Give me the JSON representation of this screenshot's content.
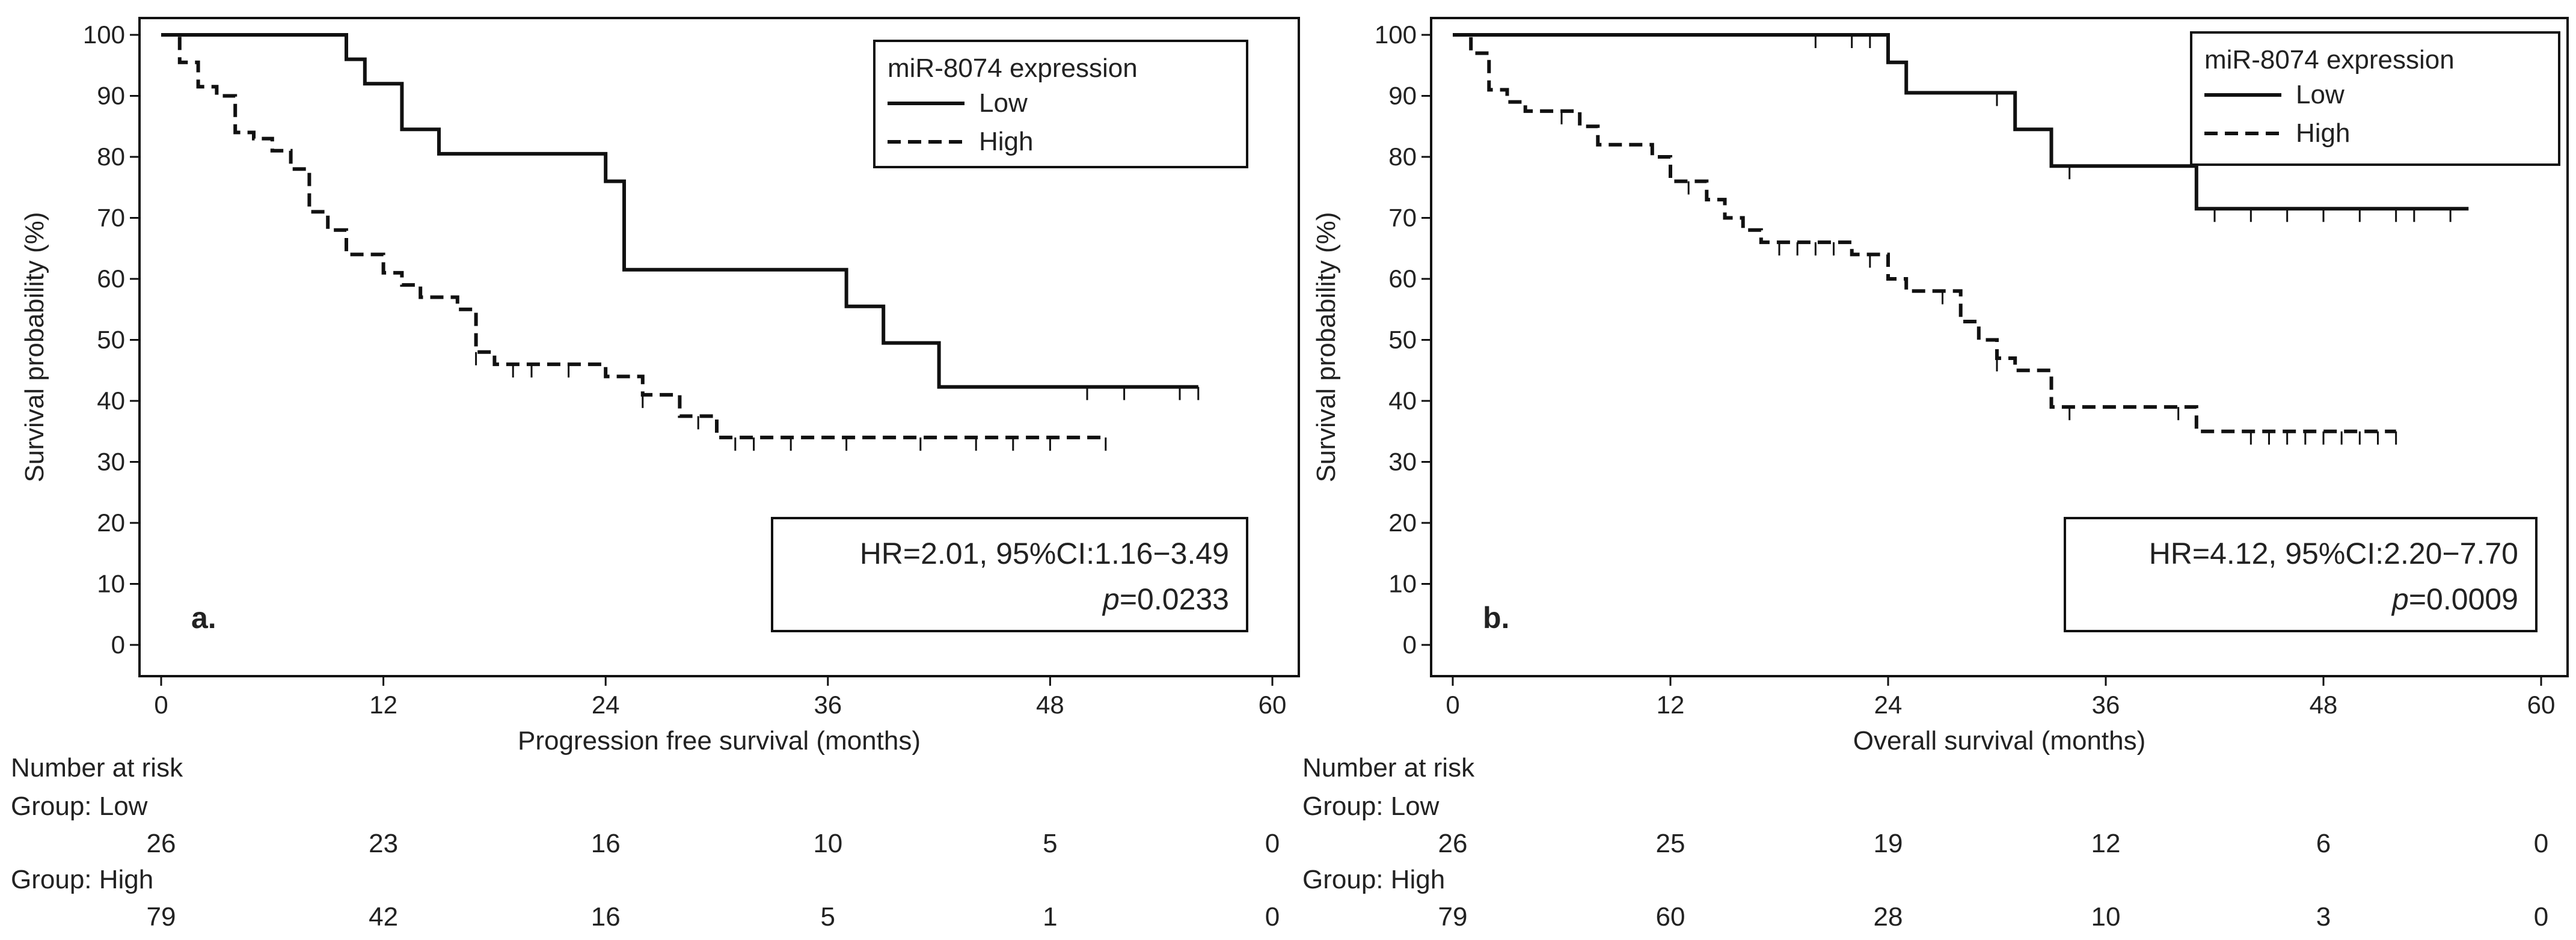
{
  "colors": {
    "line": "#111111",
    "text": "#222222",
    "background": "#ffffff"
  },
  "chart_data": [
    {
      "type": "line",
      "subtype": "kaplan-meier",
      "panel_label": "a.",
      "xlabel": "Progression free survival (months)",
      "ylabel": "Survival probability (%)",
      "xlim": [
        0,
        60
      ],
      "ylim": [
        0,
        100
      ],
      "xticks": [
        "0",
        "12",
        "24",
        "36",
        "48",
        "60"
      ],
      "yticks": [
        "0",
        "10",
        "20",
        "30",
        "40",
        "50",
        "60",
        "70",
        "80",
        "90",
        "100"
      ],
      "legend": {
        "title": "miR-8074 expression",
        "position": "top-right",
        "entries": [
          "Low",
          "High"
        ]
      },
      "stats": {
        "hr_text": "HR=2.01, 95%CI:1.16−3.49",
        "p_label": "p",
        "p_value": "=0.0233"
      },
      "series": [
        {
          "name": "Low",
          "style": "solid",
          "steps": [
            [
              0,
              100
            ],
            [
              10,
              100
            ],
            [
              10,
              96
            ],
            [
              11,
              96
            ],
            [
              11,
              92
            ],
            [
              13,
              92
            ],
            [
              13,
              84.5
            ],
            [
              15,
              84.5
            ],
            [
              15,
              80.5
            ],
            [
              24,
              80.5
            ],
            [
              24,
              76
            ],
            [
              25,
              76
            ],
            [
              25,
              61.5
            ],
            [
              37,
              61.5
            ],
            [
              37,
              55.5
            ],
            [
              39,
              55.5
            ],
            [
              39,
              49.5
            ],
            [
              42,
              49.5
            ],
            [
              42,
              42.3
            ],
            [
              56,
              42.3
            ]
          ],
          "censor": [
            50,
            52,
            55,
            56
          ]
        },
        {
          "name": "High",
          "style": "dashed",
          "steps": [
            [
              0,
              100
            ],
            [
              1,
              100
            ],
            [
              1,
              95.5
            ],
            [
              2,
              95.5
            ],
            [
              2,
              91.5
            ],
            [
              3,
              91.5
            ],
            [
              3,
              90
            ],
            [
              4,
              90
            ],
            [
              4,
              84
            ],
            [
              5,
              84
            ],
            [
              5,
              83
            ],
            [
              6,
              83
            ],
            [
              6,
              81
            ],
            [
              7,
              81
            ],
            [
              7,
              78
            ],
            [
              8,
              78
            ],
            [
              8,
              71
            ],
            [
              9,
              71
            ],
            [
              9,
              68
            ],
            [
              10,
              68
            ],
            [
              10,
              64
            ],
            [
              12,
              64
            ],
            [
              12,
              61
            ],
            [
              13,
              61
            ],
            [
              13,
              59
            ],
            [
              14,
              59
            ],
            [
              14,
              57
            ],
            [
              16,
              57
            ],
            [
              16,
              55
            ],
            [
              17,
              55
            ],
            [
              17,
              48
            ],
            [
              18,
              48
            ],
            [
              18,
              46
            ],
            [
              24,
              46
            ],
            [
              24,
              44
            ],
            [
              26,
              44
            ],
            [
              26,
              41
            ],
            [
              28,
              41
            ],
            [
              28,
              37.5
            ],
            [
              30,
              37.5
            ],
            [
              30,
              34
            ],
            [
              51,
              34
            ]
          ],
          "censor": [
            17,
            19,
            20,
            22,
            26,
            29,
            31,
            32,
            34,
            37,
            41,
            44,
            46,
            48,
            51
          ]
        }
      ],
      "risk_table": {
        "title": "Number at risk",
        "groups": [
          {
            "label": "Group: Low",
            "values": [
              26,
              23,
              16,
              10,
              5,
              0
            ]
          },
          {
            "label": "Group: High",
            "values": [
              79,
              42,
              16,
              5,
              1,
              0
            ]
          }
        ]
      }
    },
    {
      "type": "line",
      "subtype": "kaplan-meier",
      "panel_label": "b.",
      "xlabel": "Overall survival (months)",
      "ylabel": "Survival probability (%)",
      "xlim": [
        0,
        60
      ],
      "ylim": [
        0,
        100
      ],
      "xticks": [
        "0",
        "12",
        "24",
        "36",
        "48",
        "60"
      ],
      "yticks": [
        "0",
        "10",
        "20",
        "30",
        "40",
        "50",
        "60",
        "70",
        "80",
        "90",
        "100"
      ],
      "legend": {
        "title": "miR-8074 expression",
        "position": "top-right",
        "entries": [
          "Low",
          "High"
        ]
      },
      "stats": {
        "hr_text": "HR=4.12, 95%CI:2.20−7.70",
        "p_label": "p",
        "p_value": "=0.0009"
      },
      "series": [
        {
          "name": "Low",
          "style": "solid",
          "steps": [
            [
              0,
              100
            ],
            [
              24,
              100
            ],
            [
              24,
              95.5
            ],
            [
              25,
              95.5
            ],
            [
              25,
              90.5
            ],
            [
              31,
              90.5
            ],
            [
              31,
              84.5
            ],
            [
              33,
              84.5
            ],
            [
              33,
              78.5
            ],
            [
              41,
              78.5
            ],
            [
              41,
              71.5
            ],
            [
              56,
              71.5
            ]
          ],
          "censor": [
            20,
            22,
            23,
            30,
            34,
            42,
            44,
            46,
            48,
            50,
            52,
            53,
            55
          ]
        },
        {
          "name": "High",
          "style": "dashed",
          "steps": [
            [
              0,
              100
            ],
            [
              1,
              100
            ],
            [
              1,
              97
            ],
            [
              2,
              97
            ],
            [
              2,
              91
            ],
            [
              3,
              91
            ],
            [
              3,
              89
            ],
            [
              4,
              89
            ],
            [
              4,
              87.5
            ],
            [
              7,
              87.5
            ],
            [
              7,
              85
            ],
            [
              8,
              85
            ],
            [
              8,
              82
            ],
            [
              11,
              82
            ],
            [
              11,
              80
            ],
            [
              12,
              80
            ],
            [
              12,
              76
            ],
            [
              14,
              76
            ],
            [
              14,
              73
            ],
            [
              15,
              73
            ],
            [
              15,
              70
            ],
            [
              16,
              70
            ],
            [
              16,
              68
            ],
            [
              17,
              68
            ],
            [
              17,
              66
            ],
            [
              22,
              66
            ],
            [
              22,
              64
            ],
            [
              24,
              64
            ],
            [
              24,
              60
            ],
            [
              25,
              60
            ],
            [
              25,
              58
            ],
            [
              28,
              58
            ],
            [
              28,
              53
            ],
            [
              29,
              53
            ],
            [
              29,
              50
            ],
            [
              30,
              50
            ],
            [
              30,
              47
            ],
            [
              31,
              47
            ],
            [
              31,
              45
            ],
            [
              33,
              45
            ],
            [
              33,
              39
            ],
            [
              41,
              39
            ],
            [
              41,
              35
            ],
            [
              52,
              35
            ]
          ],
          "censor": [
            6,
            13,
            18,
            19,
            20,
            21,
            23,
            27,
            30,
            34,
            40,
            44,
            45,
            46,
            47,
            48,
            49,
            50,
            51,
            52
          ]
        }
      ],
      "risk_table": {
        "title": "Number at risk",
        "groups": [
          {
            "label": "Group: Low",
            "values": [
              26,
              25,
              19,
              12,
              6,
              0
            ]
          },
          {
            "label": "Group: High",
            "values": [
              79,
              60,
              28,
              10,
              3,
              0
            ]
          }
        ]
      }
    }
  ]
}
